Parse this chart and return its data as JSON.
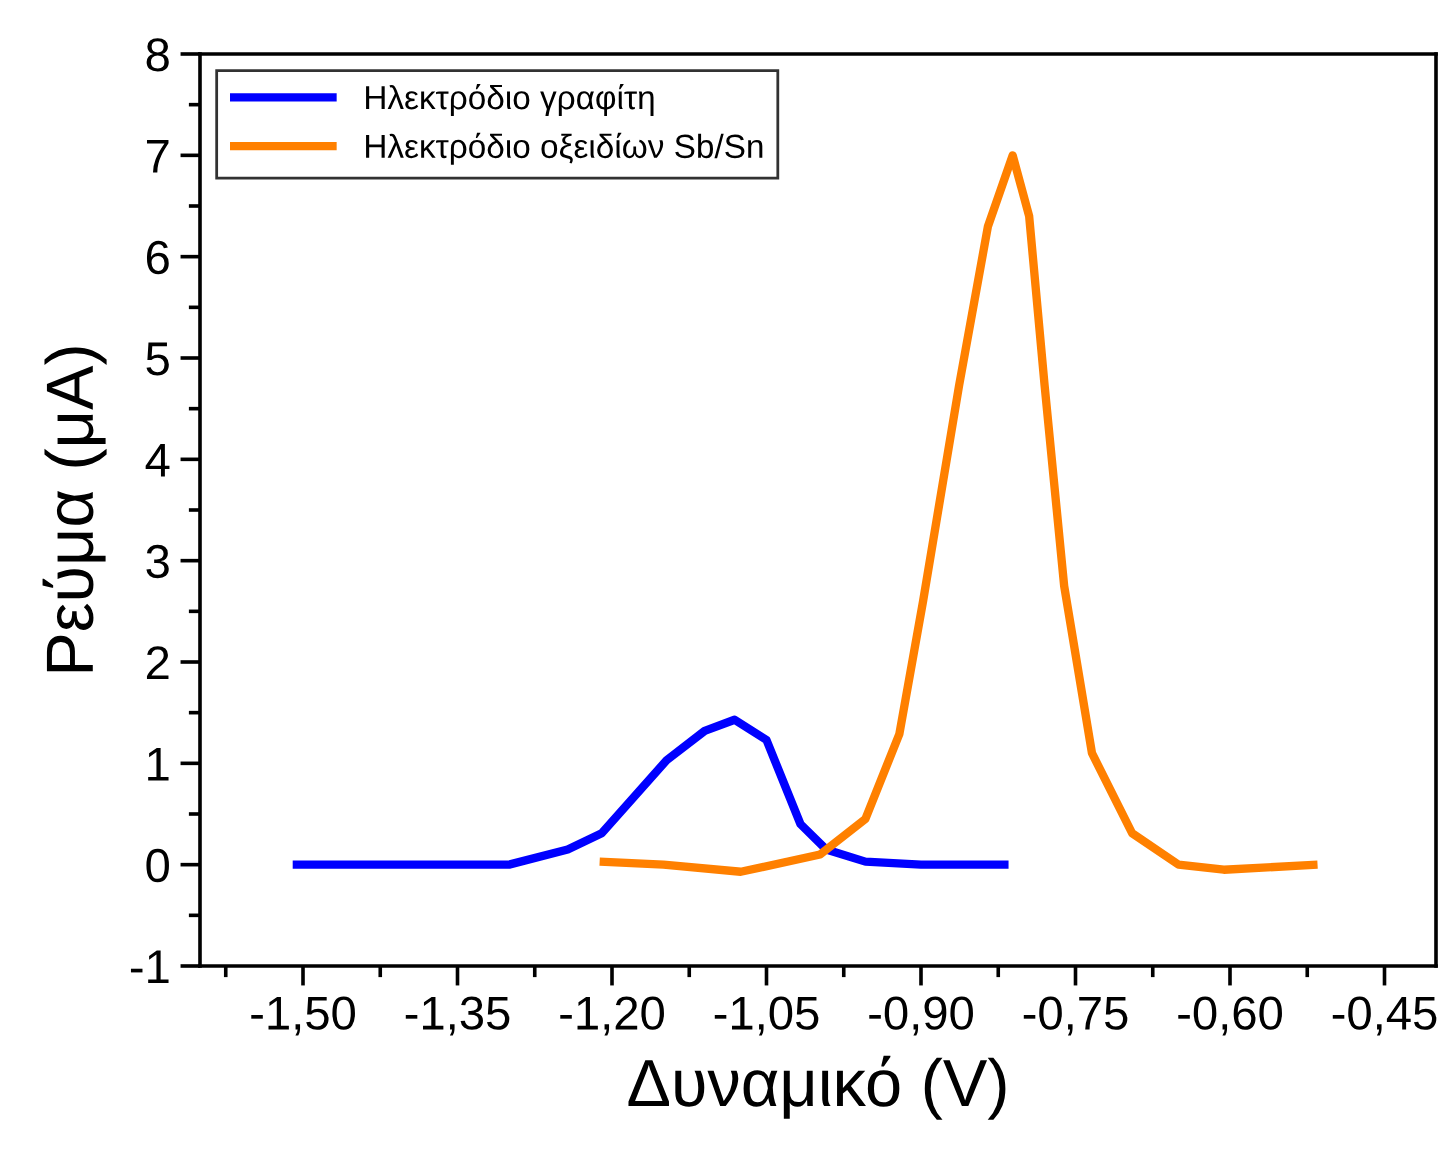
{
  "chart_data": {
    "type": "line",
    "xlabel": "Δυναμικό (V)",
    "ylabel": "Ρεύμα (μA)",
    "xlim": [
      -1.6,
      -0.4
    ],
    "ylim": [
      -1,
      8
    ],
    "xticks": [
      {
        "value": -1.5,
        "label": "-1,50"
      },
      {
        "value": -1.35,
        "label": "-1,35"
      },
      {
        "value": -1.2,
        "label": "-1,20"
      },
      {
        "value": -1.05,
        "label": "-1,05"
      },
      {
        "value": -0.9,
        "label": "-0,90"
      },
      {
        "value": -0.75,
        "label": "-0,75"
      },
      {
        "value": -0.6,
        "label": "-0,60"
      },
      {
        "value": -0.45,
        "label": "-0,45"
      }
    ],
    "yticks": [
      -1,
      0,
      1,
      2,
      3,
      4,
      5,
      6,
      7,
      8
    ],
    "legend": "top left",
    "grid": false,
    "marker": "none",
    "line_style": "solid",
    "series": [
      {
        "name": "Ηλεκτρόδιο γραφίτη",
        "color": "#0000ff",
        "x": [
          -1.51,
          -1.4,
          -1.3,
          -1.243,
          -1.21,
          -1.147,
          -1.11,
          -1.081,
          -1.05,
          -1.017,
          -0.992,
          -0.954,
          -0.9,
          -0.815
        ],
        "values": [
          0.0,
          0.0,
          0.0,
          0.15,
          0.31,
          1.03,
          1.32,
          1.43,
          1.23,
          0.4,
          0.15,
          0.03,
          0.0,
          0.0
        ]
      },
      {
        "name": "Ηλεκτρόδιο οξειδίων Sb/Sn",
        "color": "#ff8000",
        "x": [
          -1.212,
          -1.15,
          -1.075,
          -0.998,
          -0.954,
          -0.921,
          -0.898,
          -0.863,
          -0.835,
          -0.811,
          -0.795,
          -0.78,
          -0.761,
          -0.734,
          -0.695,
          -0.65,
          -0.606,
          -0.515
        ],
        "values": [
          0.03,
          0.0,
          -0.07,
          0.1,
          0.45,
          1.29,
          2.6,
          4.73,
          6.3,
          7.0,
          6.4,
          4.73,
          2.75,
          1.1,
          0.31,
          0.0,
          -0.05,
          0.0
        ]
      }
    ]
  }
}
